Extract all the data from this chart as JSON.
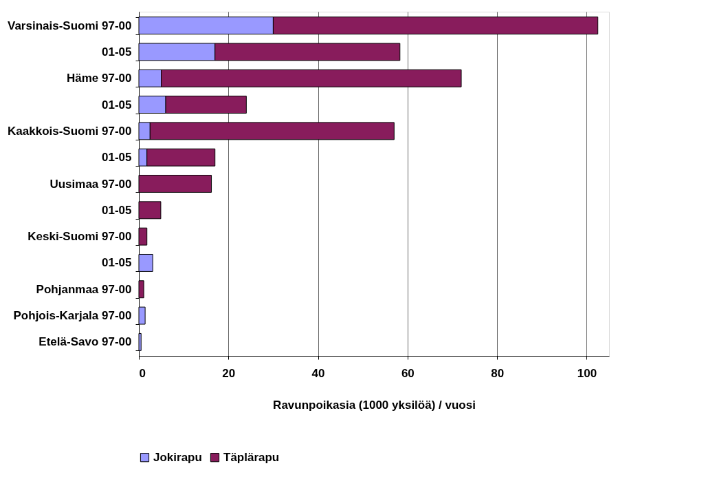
{
  "chart_data": {
    "type": "bar",
    "orientation": "horizontal",
    "stacked": true,
    "xlabel": "Ravunpoikasia (1000 yksilöä) / vuosi",
    "categories": [
      "Varsinais-Suomi 97-00",
      "01-05",
      "Häme  97-00",
      "01-05",
      "Kaakkois-Suomi  97-00",
      "01-05",
      "Uusimaa 97-00",
      "01-05",
      "Keski-Suomi 97-00",
      "01-05",
      "Pohjanmaa 97-00",
      "Pohjois-Karjala 97-00",
      "Etelä-Savo 97-00"
    ],
    "series": [
      {
        "name": "Jokirapu",
        "color": "#9999ff",
        "values": [
          30,
          17,
          5,
          6,
          2.5,
          1.8,
          null,
          null,
          null,
          3.1,
          null,
          1.4,
          0.5
        ]
      },
      {
        "name": "Täplärapu",
        "color": "#881c5c",
        "values": [
          72.5,
          41.3,
          67,
          18,
          54.5,
          15.2,
          16.2,
          4.9,
          1.8,
          null,
          1.1,
          null,
          null
        ]
      }
    ],
    "xlim": [
      0,
      105
    ],
    "xticks": [
      0,
      20,
      40,
      60,
      80,
      100
    ],
    "grid": "x",
    "legend": "bottom"
  }
}
